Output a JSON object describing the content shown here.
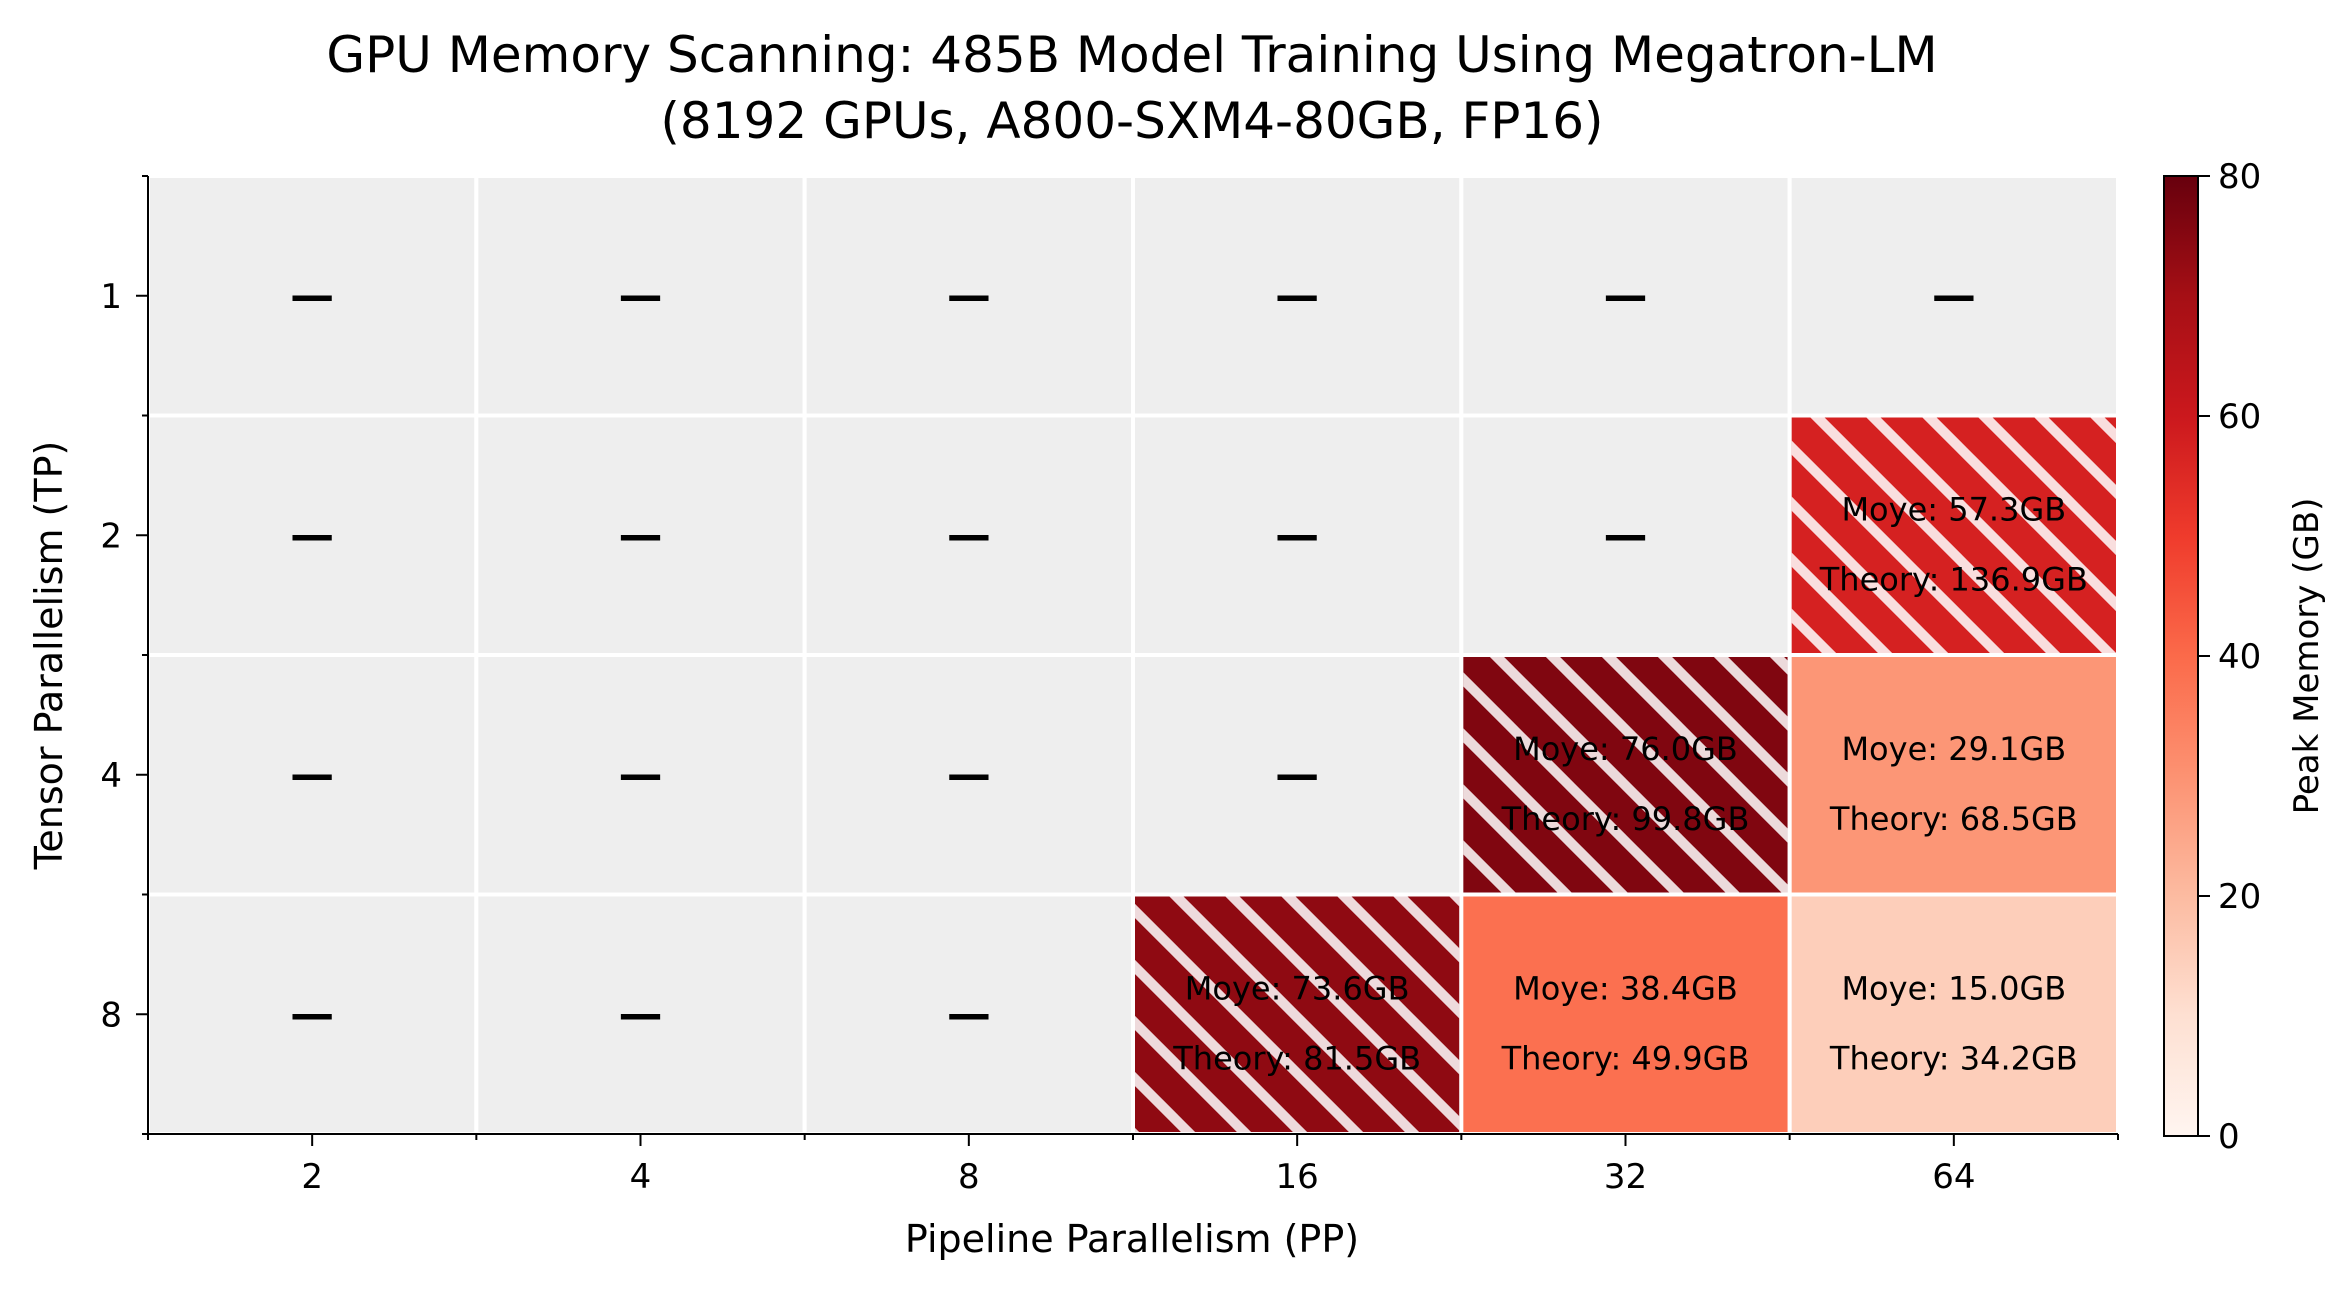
{
  "chart_data": {
    "type": "heatmap",
    "title": "GPU Memory Scanning: 485B Model Training Using Megatron-LM",
    "subtitle": "(8192 GPUs, A800-SXM4-80GB, FP16)",
    "xlabel": "Pipeline Parallelism (PP)",
    "ylabel": "Tensor Parallelism (TP)",
    "x_categories": [
      "2",
      "4",
      "8",
      "16",
      "32",
      "64"
    ],
    "y_categories": [
      "1",
      "2",
      "4",
      "8"
    ],
    "empty_marker": "—",
    "empty_color": "#eeeeee",
    "colormap": "Reds",
    "colorbar": {
      "label": "Peak Memory (GB)",
      "range": [
        0,
        80
      ],
      "ticks": [
        "0",
        "20",
        "40",
        "60",
        "80"
      ]
    },
    "cells": [
      {
        "tp": "2",
        "pp": "64",
        "moye_gb": 57.3,
        "theory_gb": 136.9,
        "moye_text": "Moye: 57.3GB",
        "theory_text": "Theory: 136.9GB",
        "hatched": true
      },
      {
        "tp": "4",
        "pp": "32",
        "moye_gb": 76.0,
        "theory_gb": 99.8,
        "moye_text": "Moye: 76.0GB",
        "theory_text": "Theory: 99.8GB",
        "hatched": true
      },
      {
        "tp": "4",
        "pp": "64",
        "moye_gb": 29.1,
        "theory_gb": 68.5,
        "moye_text": "Moye: 29.1GB",
        "theory_text": "Theory: 68.5GB",
        "hatched": false
      },
      {
        "tp": "8",
        "pp": "16",
        "moye_gb": 73.6,
        "theory_gb": 81.5,
        "moye_text": "Moye: 73.6GB",
        "theory_text": "Theory: 81.5GB",
        "hatched": true
      },
      {
        "tp": "8",
        "pp": "32",
        "moye_gb": 38.4,
        "theory_gb": 49.9,
        "moye_text": "Moye: 38.4GB",
        "theory_text": "Theory: 49.9GB",
        "hatched": false
      },
      {
        "tp": "8",
        "pp": "64",
        "moye_gb": 15.0,
        "theory_gb": 34.2,
        "moye_text": "Moye: 15.0GB",
        "theory_text": "Theory: 34.2GB",
        "hatched": false
      }
    ]
  }
}
